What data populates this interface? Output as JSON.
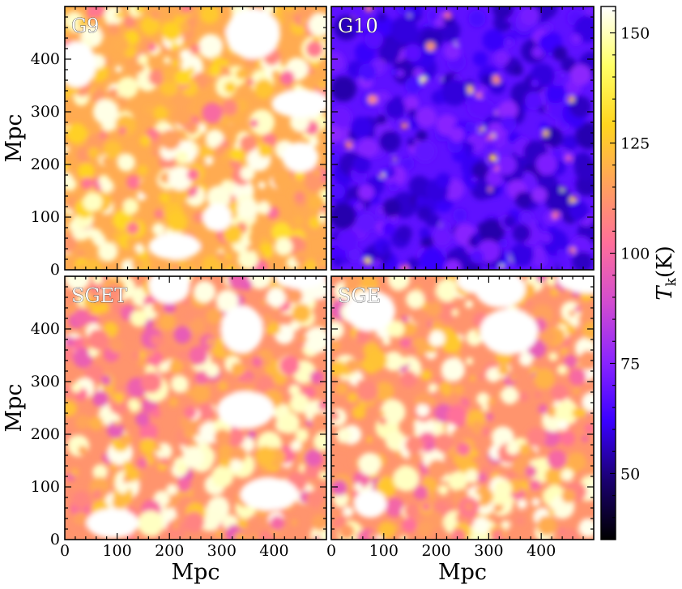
{
  "chart_data": {
    "type": "heatmap",
    "layout": "2x2 grid of temperature maps with shared colorbar on the right",
    "colormap": "gnuplot2",
    "colormap_stops": [
      "#000000",
      "#1a0070",
      "#3a00ff",
      "#8a25ff",
      "#d24cd0",
      "#ff6f9a",
      "#ffa25c",
      "#ffd51f",
      "#ffff66",
      "#ffffff"
    ],
    "panels": [
      {
        "id": "G9",
        "label": "G9",
        "typical_value": 118,
        "bright_patch_value": 150,
        "description": "warm map, orange/pink with large white regions"
      },
      {
        "id": "G10",
        "label": "G10",
        "typical_value": 68,
        "bright_patch_value": 125,
        "description": "cold map, mostly blue with sparse hot spots"
      },
      {
        "id": "SGET",
        "label": "SGET",
        "typical_value": 112,
        "bright_patch_value": 150,
        "description": "warm map similar to G9 with purple cold spots"
      },
      {
        "id": "SGE",
        "label": "SGE",
        "typical_value": 112,
        "bright_patch_value": 150,
        "description": "warm map nearly identical to SGET"
      }
    ],
    "x_axis": {
      "label": "Mpc",
      "range": [
        0,
        500
      ],
      "ticks": [
        0,
        100,
        200,
        300,
        400
      ]
    },
    "y_axis": {
      "label": "Mpc",
      "range": [
        0,
        500
      ],
      "ticks": [
        0,
        100,
        200,
        300,
        400
      ]
    },
    "colorbar": {
      "label_main": "T",
      "label_sub": "k",
      "label_unit": "(K)",
      "range": [
        35,
        156
      ],
      "ticks": [
        50,
        75,
        100,
        125,
        150
      ]
    },
    "grid": false,
    "legend": "none"
  }
}
